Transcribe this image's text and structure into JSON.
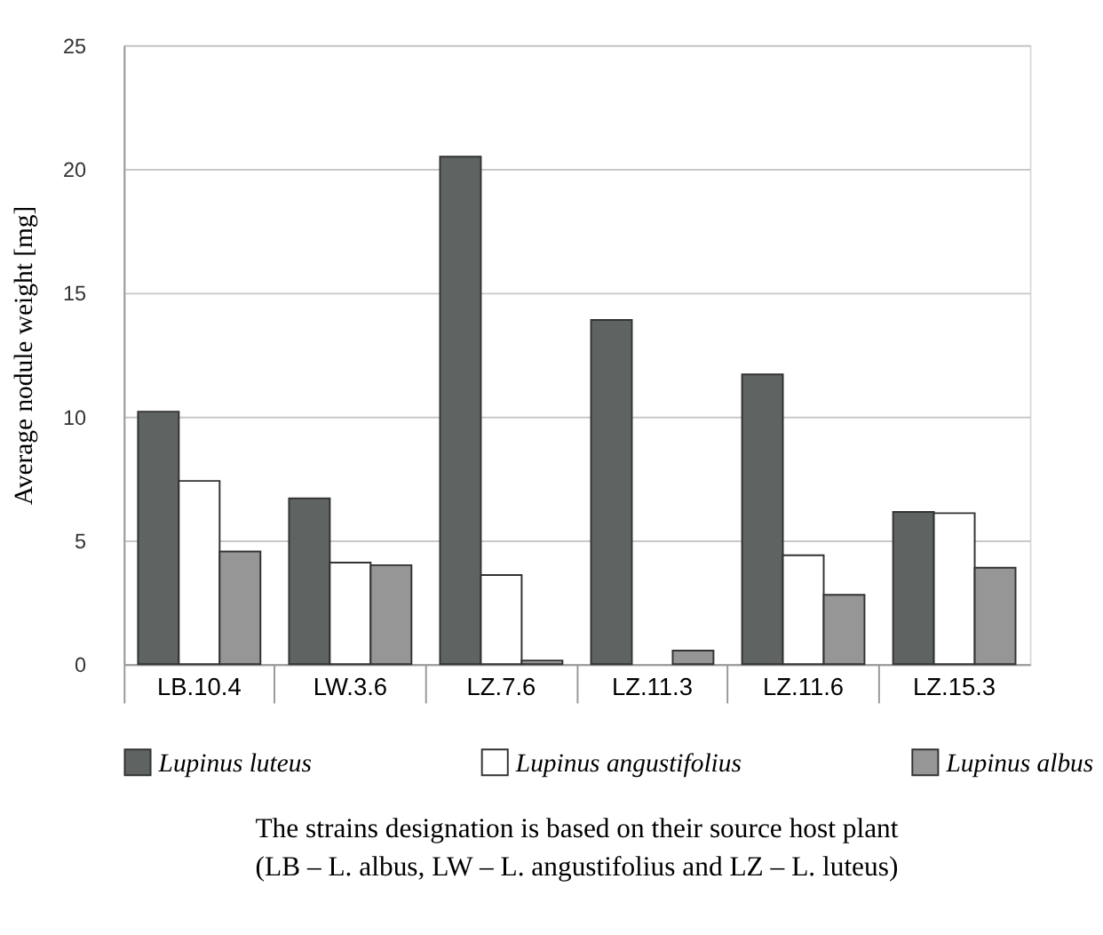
{
  "chart_data": {
    "type": "bar",
    "ylabel": "Average nodule weight [mg]",
    "categories": [
      "LB.10.4",
      "LW.3.6",
      "LZ.7.6",
      "LZ.11.3",
      "LZ.11.6",
      "LZ.15.3"
    ],
    "series": [
      {
        "name": "Lupinus luteus",
        "color": "#5f6463",
        "values": [
          10.2,
          6.7,
          20.5,
          13.9,
          11.7,
          6.15
        ]
      },
      {
        "name": "Lupinus angustifolius",
        "color": "#ffffff",
        "values": [
          7.4,
          4.1,
          3.6,
          null,
          4.4,
          6.1
        ]
      },
      {
        "name": "Lupinus albus",
        "color": "#969696",
        "values": [
          4.55,
          4.0,
          0.15,
          0.55,
          2.8,
          3.9
        ]
      }
    ],
    "ylim": [
      0,
      25
    ],
    "yticks": [
      0,
      5,
      10,
      15,
      20,
      25
    ],
    "grid": "y",
    "legend": "bottom",
    "annotations": [
      "The strains designation is based on their source host plant",
      "(LB – L. albus, LW – L. angustifolius and LZ – L. luteus)"
    ]
  }
}
